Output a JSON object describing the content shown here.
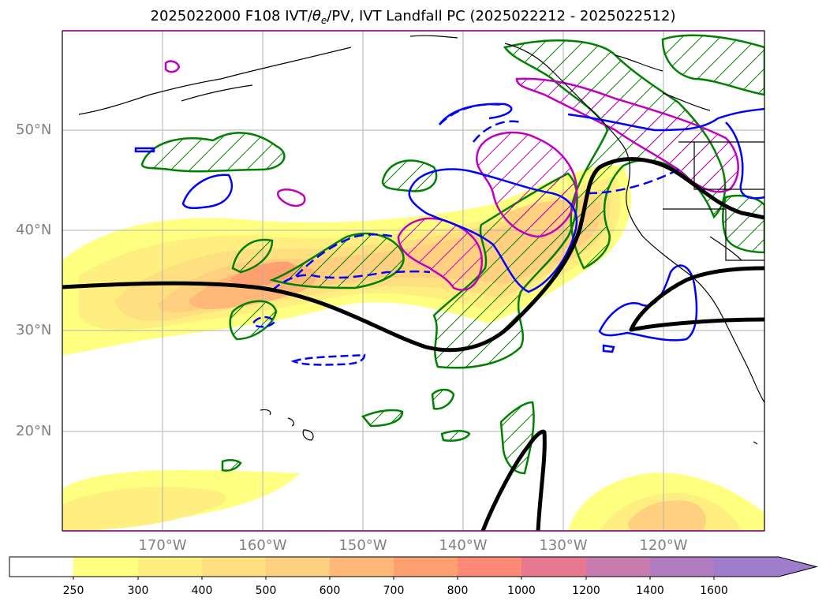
{
  "title": {
    "prefix": "2025022000 F108 IVT/",
    "theta": "θ",
    "theta_sub": "e",
    "suffix": "/PV, IVT Landfall PC (2025022212 - 2025022512)"
  },
  "map": {
    "lat_labels": [
      "50°N",
      "40°N",
      "30°N",
      "20°N"
    ],
    "lon_labels": [
      "170°W",
      "160°W",
      "150°W",
      "140°W",
      "130°W",
      "120°W"
    ]
  },
  "colorbar": {
    "levels": [
      "250",
      "300",
      "400",
      "500",
      "600",
      "700",
      "800",
      "1000",
      "1200",
      "1400",
      "1600"
    ],
    "colors": [
      "#ffffff",
      "#ffff80",
      "#ffee80",
      "#ffe080",
      "#ffd080",
      "#ffb878",
      "#ffa070",
      "#ff8878",
      "#e87890",
      "#c87cb0",
      "#b07cc0",
      "#a07ccc"
    ]
  },
  "colors": {
    "theta_e": "#000000",
    "pv_positive": "#0000ff",
    "landfall_pc": "#008000",
    "magenta_contour": "#c000c0",
    "grid": "#b0b0b0"
  }
}
